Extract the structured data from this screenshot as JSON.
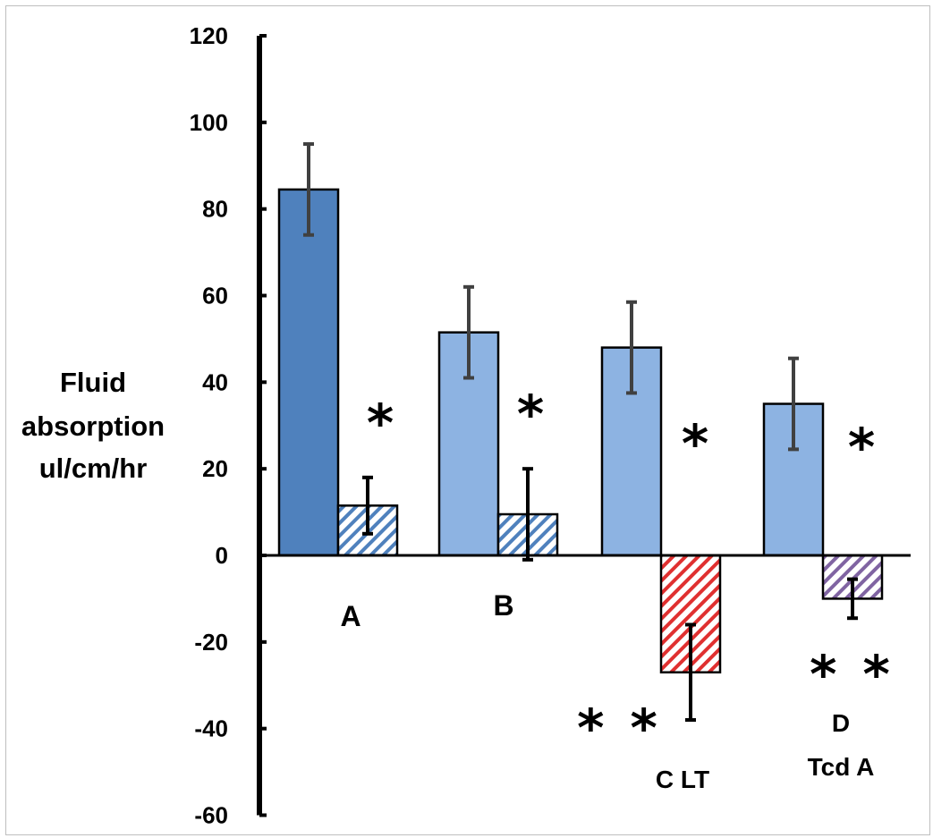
{
  "chart_data": {
    "type": "bar",
    "ylabel": [
      "Fluid",
      "absorption",
      "ul/cm/hr"
    ],
    "ylim": [
      -60,
      120
    ],
    "yticks": [
      -60,
      -40,
      -20,
      0,
      20,
      40,
      60,
      80,
      100,
      120
    ],
    "grid": false,
    "legend": "none",
    "groups": [
      {
        "label": "A",
        "bars": [
          {
            "value": 84.5,
            "error": 10.5,
            "fill": "solid",
            "color": "#4f81bd",
            "significance": ""
          },
          {
            "value": 11.5,
            "error": 6.5,
            "fill": "hatched",
            "color": "#4f81bd",
            "significance": "*"
          }
        ]
      },
      {
        "label": "B",
        "bars": [
          {
            "value": 51.5,
            "error": 10.5,
            "fill": "solid",
            "color": "#8db3e2",
            "significance": ""
          },
          {
            "value": 9.5,
            "error": 10.5,
            "fill": "hatched",
            "color": "#4f81bd",
            "significance": "*"
          }
        ]
      },
      {
        "label": "C  LT",
        "bars": [
          {
            "value": 48,
            "error": 10.5,
            "fill": "solid",
            "color": "#8db3e2",
            "significance": "*"
          },
          {
            "value": -27,
            "error": 11,
            "fill": "hatched",
            "color": "#e03030",
            "significance": "* *"
          }
        ]
      },
      {
        "label": [
          "D",
          "Tcd A"
        ],
        "bars": [
          {
            "value": 35,
            "error": 10.5,
            "fill": "solid",
            "color": "#8db3e2",
            "significance": "*"
          },
          {
            "value": -10,
            "error": 4.5,
            "fill": "hatched",
            "color": "#8064a2",
            "significance": "* *"
          }
        ]
      }
    ]
  }
}
